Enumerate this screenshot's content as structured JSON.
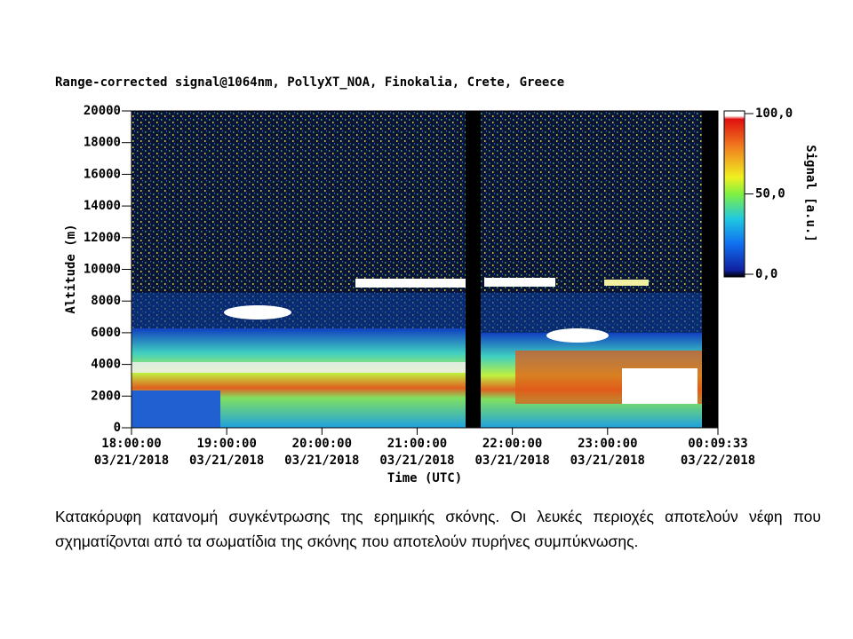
{
  "chart_data": {
    "type": "heatmap",
    "title": "Range-corrected signal@1064nm, PollyXT_NOA, Finokalia, Crete, Greece",
    "xlabel": "Time (UTC)",
    "ylabel": "Altitude (m)",
    "xlim": [
      "2018-03-21T18:00:00",
      "2018-03-22T00:09:33"
    ],
    "xticks": [
      {
        "value": "2018-03-21T18:00:00",
        "label": [
          "18:00:00",
          "03/21/2018"
        ]
      },
      {
        "value": "2018-03-21T19:00:00",
        "label": [
          "19:00:00",
          "03/21/2018"
        ]
      },
      {
        "value": "2018-03-21T20:00:00",
        "label": [
          "20:00:00",
          "03/21/2018"
        ]
      },
      {
        "value": "2018-03-21T21:00:00",
        "label": [
          "21:00:00",
          "03/21/2018"
        ]
      },
      {
        "value": "2018-03-21T22:00:00",
        "label": [
          "22:00:00",
          "03/21/2018"
        ]
      },
      {
        "value": "2018-03-21T23:00:00",
        "label": [
          "23:00:00",
          "03/21/2018"
        ]
      },
      {
        "value": "2018-03-22T00:09:33",
        "label": [
          "00:09:33",
          "03/22/2018"
        ]
      }
    ],
    "ylim": [
      0,
      20000
    ],
    "yticks": [
      0,
      2000,
      4000,
      6000,
      8000,
      10000,
      12000,
      14000,
      16000,
      18000,
      20000
    ],
    "colorbar_label": "Signal [a.u.]",
    "clim": [
      0,
      100
    ],
    "cticks": [
      {
        "value": 0,
        "label": "0,0"
      },
      {
        "value": 50,
        "label": "50,0"
      },
      {
        "value": 100,
        "label": "100,0"
      }
    ]
  },
  "caption": "Κατακόρυφη κατανομή συγκέντρωσης της ερημικής σκόνης. Οι λευκές περιοχές αποτελούν νέφη που σχηματίζονται από τα σωματίδια της σκόνης που αποτελούν πυρήνες συμπύκνωσης."
}
